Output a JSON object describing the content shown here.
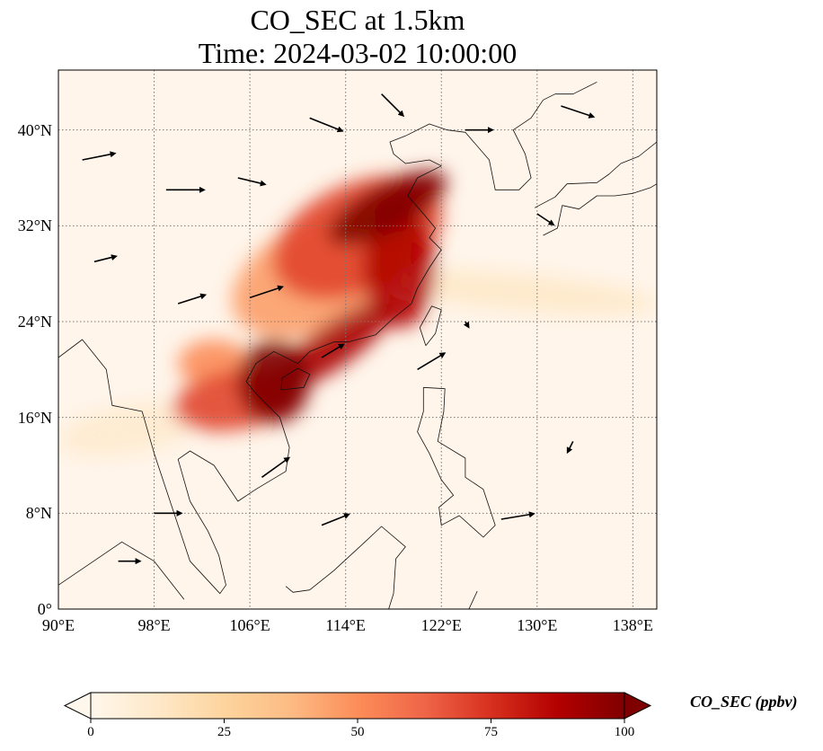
{
  "title": {
    "line1": "CO_SEC at 1.5km",
    "line2": "Time: 2024-03-02 10:00:00"
  },
  "map": {
    "lon_range": [
      90,
      140
    ],
    "lat_range": [
      0,
      45
    ],
    "projection": "PlateCarree",
    "gridlines": "dotted",
    "lat_ticks": [
      {
        "value": 0,
        "label": "0°"
      },
      {
        "value": 8,
        "label": "8°N"
      },
      {
        "value": 16,
        "label": "16°N"
      },
      {
        "value": 24,
        "label": "24°N"
      },
      {
        "value": 32,
        "label": "32°N"
      },
      {
        "value": 40,
        "label": "40°N"
      }
    ],
    "lon_ticks": [
      {
        "value": 90,
        "label": "90°E"
      },
      {
        "value": 98,
        "label": "98°E"
      },
      {
        "value": 106,
        "label": "106°E"
      },
      {
        "value": 114,
        "label": "114°E"
      },
      {
        "value": 122,
        "label": "122°E"
      },
      {
        "value": 130,
        "label": "130°E"
      },
      {
        "value": 138,
        "label": "138°E"
      }
    ],
    "plume_regions": [
      {
        "lon": 117.5,
        "lat": 33.5,
        "rlon": 5.5,
        "rlat": 2.0,
        "rot": -28,
        "value": 100
      },
      {
        "lon": 115.0,
        "lat": 31.0,
        "rlon": 7.5,
        "rlat": 4.5,
        "rot": -25,
        "value": 70
      },
      {
        "lon": 112.0,
        "lat": 28.0,
        "rlon": 8.0,
        "rlat": 4.5,
        "rot": -25,
        "value": 45
      },
      {
        "lon": 118.5,
        "lat": 28.5,
        "rlon": 3.0,
        "rlat": 5.0,
        "rot": 0,
        "value": 88
      },
      {
        "lon": 108.0,
        "lat": 19.0,
        "rlon": 3.0,
        "rlat": 3.5,
        "rot": 0,
        "value": 100
      },
      {
        "lon": 105.0,
        "lat": 17.5,
        "rlon": 5.5,
        "rlat": 2.5,
        "rot": -10,
        "value": 70
      },
      {
        "lon": 113.0,
        "lat": 22.0,
        "rlon": 6.0,
        "rlat": 1.8,
        "rot": -35,
        "value": 90
      },
      {
        "lon": 103.0,
        "lat": 20.5,
        "rlon": 3.0,
        "rlat": 2.0,
        "rot": 0,
        "value": 50
      },
      {
        "lon": 128.0,
        "lat": 26.5,
        "rlon": 12.0,
        "rlat": 1.5,
        "rot": 5,
        "value": 12
      },
      {
        "lon": 96.0,
        "lat": 15.0,
        "rlon": 6.0,
        "rlat": 2.0,
        "rot": -10,
        "value": 10
      }
    ],
    "wind_arrows": [
      {
        "lon": 92,
        "lat": 37.5,
        "u": 3,
        "v": 0.6
      },
      {
        "lon": 99,
        "lat": 35,
        "u": 3.5,
        "v": 0
      },
      {
        "lon": 105,
        "lat": 36,
        "u": 2.5,
        "v": -0.6
      },
      {
        "lon": 111,
        "lat": 41,
        "u": 3,
        "v": -1.2
      },
      {
        "lon": 117,
        "lat": 43,
        "u": 2,
        "v": -2
      },
      {
        "lon": 124,
        "lat": 40,
        "u": 2.5,
        "v": 0
      },
      {
        "lon": 132,
        "lat": 42,
        "u": 3,
        "v": -1
      },
      {
        "lon": 93,
        "lat": 29,
        "u": 2,
        "v": 0.5
      },
      {
        "lon": 100,
        "lat": 25.5,
        "u": 2.5,
        "v": 0.8
      },
      {
        "lon": 106,
        "lat": 26,
        "u": 3,
        "v": 1
      },
      {
        "lon": 112,
        "lat": 21,
        "u": 2,
        "v": 1.2
      },
      {
        "lon": 120,
        "lat": 20,
        "u": 2.5,
        "v": 1.5
      },
      {
        "lon": 98,
        "lat": 8,
        "u": 2.5,
        "v": 0
      },
      {
        "lon": 107,
        "lat": 11,
        "u": 2.5,
        "v": 1.8
      },
      {
        "lon": 112,
        "lat": 7,
        "u": 2.5,
        "v": 1
      },
      {
        "lon": 127,
        "lat": 7.5,
        "u": 3,
        "v": 0.5
      },
      {
        "lon": 133,
        "lat": 14,
        "u": -0.5,
        "v": -1
      },
      {
        "lon": 130,
        "lat": 33,
        "u": 1.5,
        "v": -1
      },
      {
        "lon": 124,
        "lat": 24,
        "u": 0.3,
        "v": -0.5
      },
      {
        "lon": 95,
        "lat": 4,
        "u": 2,
        "v": 0
      }
    ],
    "land_outlines": [
      [
        [
          90,
          21
        ],
        [
          92,
          22.5
        ],
        [
          94,
          20
        ],
        [
          94.5,
          17
        ],
        [
          97,
          16.5
        ],
        [
          98,
          13
        ],
        [
          99,
          10
        ],
        [
          100,
          7
        ],
        [
          101,
          4
        ],
        [
          103.5,
          1.3
        ],
        [
          104,
          2
        ],
        [
          103.4,
          4.5
        ],
        [
          102.5,
          6.5
        ],
        [
          101,
          9
        ],
        [
          100,
          12.5
        ],
        [
          101,
          13.2
        ],
        [
          103,
          12
        ],
        [
          105,
          9
        ],
        [
          106.5,
          10
        ],
        [
          109,
          11.5
        ],
        [
          109.3,
          13.5
        ],
        [
          108.5,
          16
        ],
        [
          106.5,
          18
        ],
        [
          105.7,
          19
        ],
        [
          106.5,
          20.5
        ],
        [
          108,
          21.5
        ],
        [
          110,
          20.5
        ],
        [
          111,
          21.5
        ],
        [
          113,
          22.3
        ],
        [
          114.2,
          22.3
        ],
        [
          116.5,
          22.9
        ],
        [
          118,
          24.3
        ],
        [
          119.5,
          25.5
        ],
        [
          120,
          26.8
        ],
        [
          121,
          28.5
        ],
        [
          122,
          30
        ],
        [
          121,
          31
        ],
        [
          121.5,
          31.8
        ],
        [
          120.5,
          33
        ],
        [
          119.2,
          34.5
        ],
        [
          120,
          36
        ],
        [
          122,
          37
        ],
        [
          121,
          37.5
        ],
        [
          119,
          37.2
        ],
        [
          118,
          38
        ],
        [
          117.7,
          39
        ],
        [
          119,
          39.5
        ],
        [
          121,
          40.5
        ],
        [
          122.5,
          40
        ],
        [
          124,
          39.8
        ],
        [
          126,
          37.5
        ],
        [
          126.5,
          35
        ],
        [
          128.5,
          35
        ],
        [
          129.5,
          36
        ],
        [
          129,
          38
        ],
        [
          128,
          40
        ],
        [
          129.5,
          41
        ],
        [
          130.5,
          42.5
        ],
        [
          131.5,
          43
        ],
        [
          133,
          43
        ],
        [
          135,
          44
        ]
      ],
      [
        [
          120.7,
          22
        ],
        [
          121.5,
          23
        ],
        [
          122,
          25
        ],
        [
          121.2,
          25.3
        ],
        [
          120.2,
          23.5
        ],
        [
          120.7,
          22
        ]
      ],
      [
        [
          108.6,
          18.3
        ],
        [
          110.5,
          18.5
        ],
        [
          111,
          19.6
        ],
        [
          110,
          20.1
        ],
        [
          108.7,
          19.3
        ],
        [
          108.6,
          18.3
        ]
      ],
      [
        [
          120.5,
          18.5
        ],
        [
          122.3,
          18.4
        ],
        [
          122.2,
          16.5
        ],
        [
          121.7,
          14
        ],
        [
          124,
          12.6
        ],
        [
          124,
          11
        ],
        [
          125.5,
          10
        ],
        [
          126.5,
          7
        ],
        [
          125.5,
          6
        ],
        [
          123.5,
          7.8
        ],
        [
          122,
          7
        ],
        [
          121.8,
          8.5
        ],
        [
          123,
          9.5
        ],
        [
          122,
          10.8
        ],
        [
          121,
          13
        ],
        [
          120,
          14.8
        ],
        [
          120.5,
          16.5
        ],
        [
          120.5,
          18.5
        ]
      ],
      [
        [
          130.5,
          31.2
        ],
        [
          131.7,
          31.8
        ],
        [
          132.1,
          33.7
        ],
        [
          133.5,
          33.4
        ],
        [
          135,
          34.5
        ],
        [
          136.5,
          34.5
        ],
        [
          138,
          34.7
        ],
        [
          139.5,
          35.2
        ],
        [
          140,
          35.5
        ]
      ],
      [
        [
          129.8,
          33.5
        ],
        [
          131.5,
          34.4
        ],
        [
          132.5,
          35.5
        ],
        [
          135,
          35.6
        ],
        [
          136,
          36.3
        ],
        [
          137,
          37.2
        ],
        [
          138.5,
          37.8
        ],
        [
          140,
          39
        ]
      ],
      [
        [
          90,
          2
        ],
        [
          95.3,
          5.6
        ],
        [
          98,
          4
        ],
        [
          100.5,
          0.8
        ]
      ],
      [
        [
          109,
          1.9
        ],
        [
          109.6,
          1.4
        ],
        [
          111,
          1.6
        ],
        [
          113,
          3.2
        ],
        [
          115.5,
          5.5
        ],
        [
          117,
          6.9
        ],
        [
          119,
          5.2
        ],
        [
          118.2,
          4.2
        ],
        [
          118,
          1.3
        ],
        [
          117.6,
          0
        ]
      ],
      [
        [
          125,
          1.5
        ],
        [
          124.3,
          0
        ]
      ]
    ]
  },
  "colorbar": {
    "label": "CO_SEC (ppbv)",
    "vmin": 0,
    "vmax": 100,
    "ticks": [
      {
        "value": 0,
        "label": "0"
      },
      {
        "value": 25,
        "label": "25"
      },
      {
        "value": 50,
        "label": "50"
      },
      {
        "value": 75,
        "label": "75"
      },
      {
        "value": 100,
        "label": "100"
      }
    ],
    "colormap": [
      "#fff7ec",
      "#fee8c8",
      "#fdd49e",
      "#fdbb84",
      "#fc8d59",
      "#ef6548",
      "#d7301f",
      "#b30000",
      "#7f0000"
    ]
  }
}
